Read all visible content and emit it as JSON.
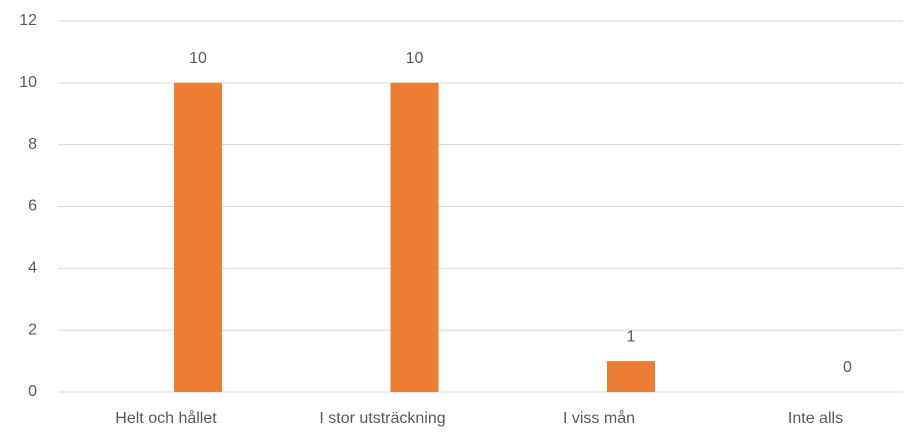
{
  "chart_data": {
    "type": "bar",
    "categories": [
      "Helt och hållet",
      "I stor utsträckning",
      "I viss mån",
      "Inte alls"
    ],
    "values": [
      10,
      10,
      1,
      0
    ],
    "color": "#ed7d31",
    "ylim": [
      0,
      12
    ],
    "yticks": [
      0,
      2,
      4,
      6,
      8,
      10,
      12
    ],
    "grid": true
  }
}
